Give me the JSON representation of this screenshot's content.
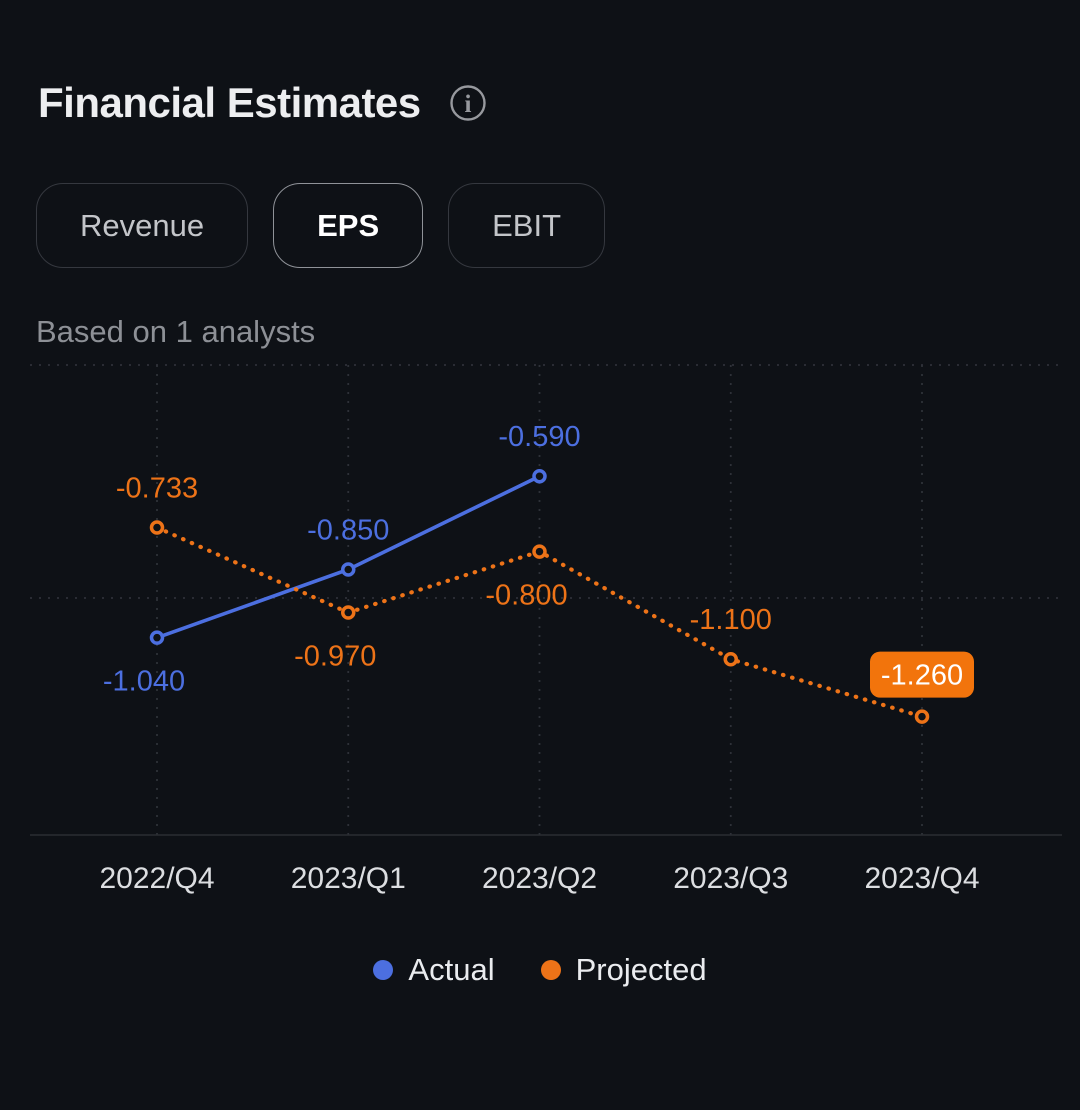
{
  "header": {
    "title": "Financial Estimates",
    "info_icon": "info-icon"
  },
  "tabs": [
    {
      "label": "Revenue",
      "selected": false
    },
    {
      "label": "EPS",
      "selected": true
    },
    {
      "label": "EBIT",
      "selected": false
    }
  ],
  "subtitle": "Based on 1 analysts",
  "colors": {
    "background": "#0e1116",
    "accent_blue": "#4c6fe0",
    "accent_orange": "#ed7318",
    "badge_orange": "#f2740c",
    "badge_text": "#ffffff",
    "grid": "#2e3138",
    "axis": "#2a2d32",
    "x_label": "#dcdee1"
  },
  "chart_data": {
    "type": "line",
    "title": "Financial Estimates - EPS",
    "categories": [
      "2022/Q4",
      "2023/Q1",
      "2023/Q2",
      "2023/Q3",
      "2023/Q4"
    ],
    "series": [
      {
        "name": "Actual",
        "color": "#4c6fe0",
        "style": "solid",
        "values": [
          -1.04,
          -0.85,
          -0.59,
          null,
          null
        ],
        "labels": [
          "-1.040",
          "-0.850",
          "-0.590",
          null,
          null
        ],
        "label_positions": [
          "below",
          "above",
          "above",
          null,
          null
        ]
      },
      {
        "name": "Projected",
        "color": "#ed7318",
        "style": "dotted",
        "values": [
          -0.733,
          -0.97,
          -0.8,
          -1.1,
          -1.26
        ],
        "labels": [
          "-0.733",
          "-0.970",
          "-0.800",
          "-1.100",
          "-1.260"
        ],
        "label_positions": [
          "above",
          "below",
          "below",
          "above",
          "badge-above"
        ]
      }
    ],
    "ylim": [
      -1.59,
      -0.28
    ],
    "xlabel": "",
    "ylabel": "",
    "grid": "dotted",
    "legend_position": "bottom",
    "legend": [
      "Actual",
      "Projected"
    ]
  }
}
